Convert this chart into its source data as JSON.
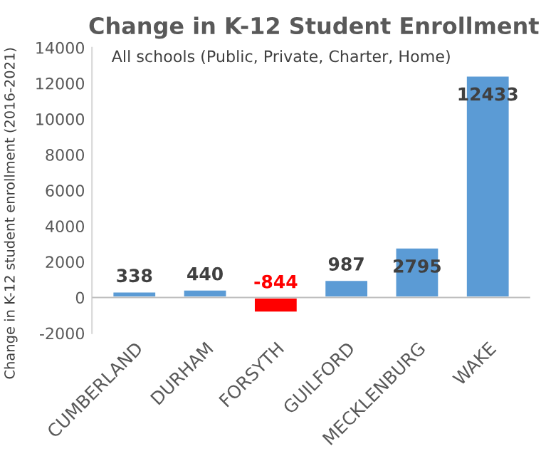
{
  "chart_data": {
    "type": "bar",
    "title": "Change in K-12 Student Enrollment",
    "subtitle": "All schools (Public, Private, Charter, Home)",
    "ylabel": "Change in K-12 student enrollment (2016-2021)",
    "categories": [
      "CUMBERLAND",
      "DURHAM",
      "FORSYTH",
      "GUILFORD",
      "MECKLENBURG",
      "WAKE"
    ],
    "values": [
      338,
      440,
      -844,
      987,
      2795,
      12433
    ],
    "colors": [
      "#5b9bd5",
      "#5b9bd5",
      "#ff0000",
      "#5b9bd5",
      "#5b9bd5",
      "#5b9bd5"
    ],
    "ylim": [
      -2000,
      14000
    ],
    "yticks": [
      -2000,
      0,
      2000,
      4000,
      6000,
      8000,
      10000,
      12000,
      14000
    ],
    "data_labels": true,
    "grid": false,
    "legend": false
  }
}
